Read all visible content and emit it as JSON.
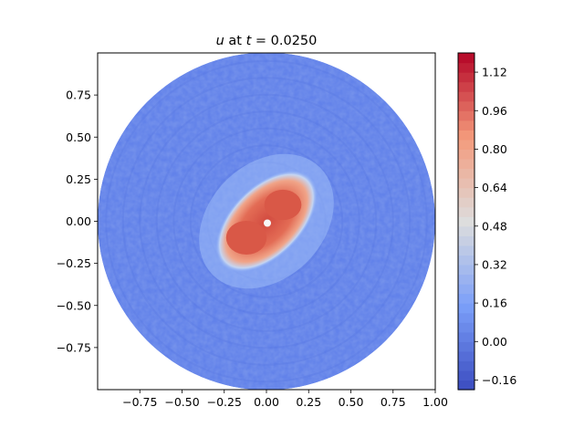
{
  "chart_data": {
    "type": "heatmap",
    "title_var": "u",
    "title_mid": " at ",
    "title_var2": "t",
    "title_eq": " = 0.0250",
    "domain": "unit disk",
    "x_ticks": [
      "−0.75",
      "−0.50",
      "−0.25",
      "0.00",
      "0.25",
      "0.50",
      "0.75",
      "1.00"
    ],
    "x_tick_values": [
      -0.75,
      -0.5,
      -0.25,
      0.0,
      0.25,
      0.5,
      0.75,
      1.0
    ],
    "y_ticks": [
      "0.75",
      "0.50",
      "0.25",
      "0.00",
      "−0.25",
      "−0.50",
      "−0.75"
    ],
    "y_tick_values": [
      0.75,
      0.5,
      0.25,
      0.0,
      -0.25,
      -0.5,
      -0.75
    ],
    "xlim": [
      -1.0,
      1.0
    ],
    "ylim": [
      -1.0,
      1.0
    ],
    "colormap": "coolwarm",
    "colorbar": {
      "range": [
        -0.2,
        1.2
      ],
      "ticks": [
        "1.12",
        "0.96",
        "0.80",
        "0.64",
        "0.48",
        "0.32",
        "0.16",
        "0.00",
        "−0.16"
      ],
      "tick_values": [
        1.12,
        0.96,
        0.8,
        0.64,
        0.48,
        0.32,
        0.16,
        0.0,
        -0.16
      ],
      "levels": 35
    },
    "field_description": {
      "background_value": 0.08,
      "peak_value": 0.92,
      "peak_orientation_deg": 45
    }
  },
  "colors": {
    "cool_end": "#3b4cc0",
    "mid": "#dddddd",
    "warm_end": "#b40426",
    "background_field": "#6282ea",
    "hot_spot": "#d95847"
  }
}
